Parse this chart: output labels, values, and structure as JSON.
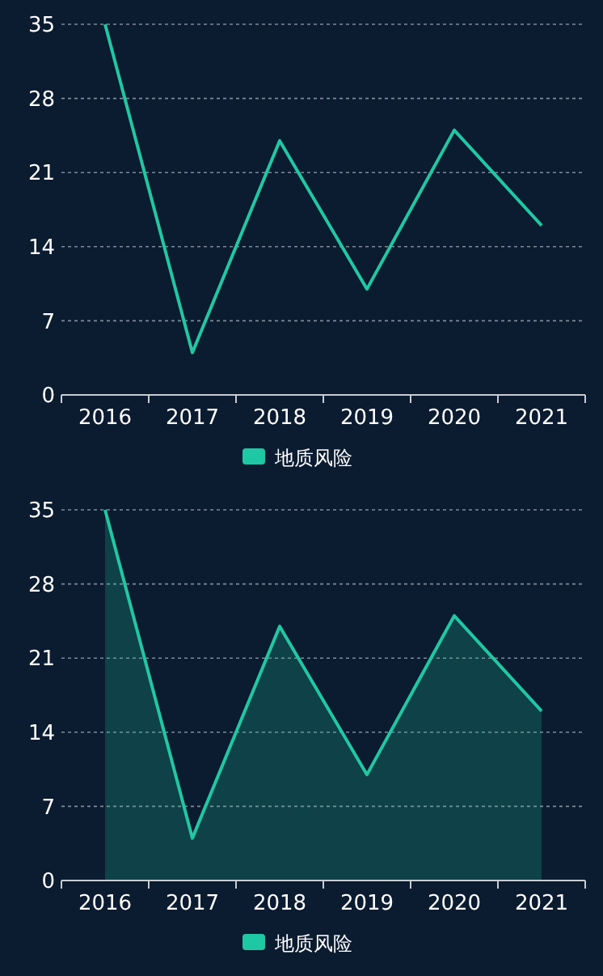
{
  "chart_data": [
    {
      "type": "line",
      "categories": [
        "2016",
        "2017",
        "2018",
        "2019",
        "2020",
        "2021"
      ],
      "series": [
        {
          "name": "地质风险",
          "color": "#1fc8a4",
          "values": [
            35,
            4,
            24,
            10,
            25,
            16
          ]
        }
      ],
      "ylim": [
        0,
        35
      ],
      "yticks": [
        0,
        7,
        14,
        21,
        28,
        35
      ],
      "grid": "y",
      "legend": "bottom",
      "marker": "none"
    },
    {
      "type": "area",
      "categories": [
        "2016",
        "2017",
        "2018",
        "2019",
        "2020",
        "2021"
      ],
      "series": [
        {
          "name": "地质风险",
          "color": "#1fc8a4",
          "values": [
            35,
            4,
            24,
            10,
            25,
            16
          ]
        }
      ],
      "ylim": [
        0,
        35
      ],
      "yticks": [
        0,
        7,
        14,
        21,
        28,
        35
      ],
      "grid": "y",
      "legend": "bottom",
      "marker": "none"
    }
  ]
}
